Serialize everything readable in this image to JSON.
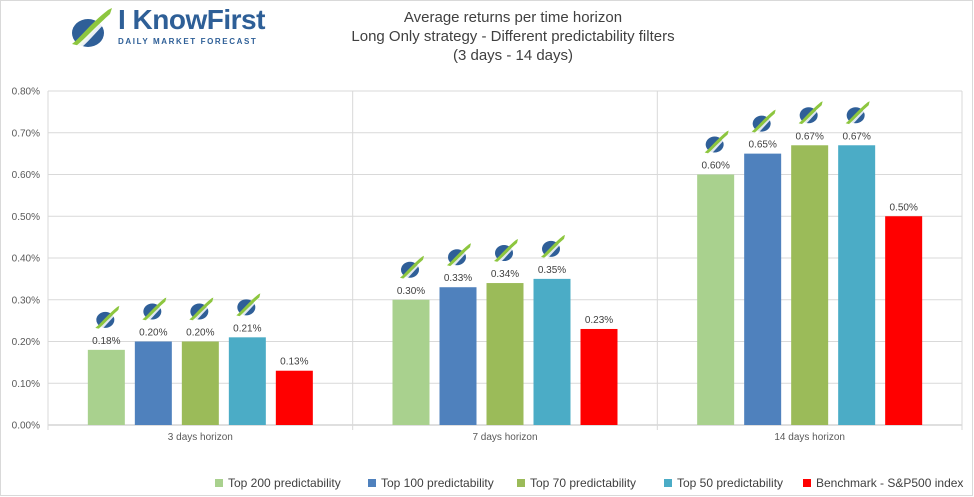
{
  "brand": {
    "name": "I KnowFirst",
    "tagline": "DAILY MARKET FORECAST"
  },
  "chart_data": {
    "type": "bar",
    "title": [
      "Average returns per time horizon",
      "Long Only strategy - Different predictability filters",
      "(3 days - 14 days)"
    ],
    "categories": [
      "3 days horizon",
      "7 days horizon",
      "14 days horizon"
    ],
    "series": [
      {
        "name": "Top 200 predictability",
        "color": "#a9d18e",
        "values": [
          0.18,
          0.3,
          0.6
        ],
        "labels": [
          "0.18%",
          "0.30%",
          "0.60%"
        ]
      },
      {
        "name": "Top 100 predictability",
        "color": "#4f81bd",
        "values": [
          0.2,
          0.33,
          0.65
        ],
        "labels": [
          "0.20%",
          "0.33%",
          "0.65%"
        ]
      },
      {
        "name": "Top 70 predictability",
        "color": "#9bbb59",
        "values": [
          0.2,
          0.34,
          0.67
        ],
        "labels": [
          "0.20%",
          "0.34%",
          "0.67%"
        ]
      },
      {
        "name": "Top 50 predictability",
        "color": "#4bacc6",
        "values": [
          0.21,
          0.35,
          0.67
        ],
        "labels": [
          "0.21%",
          "0.35%",
          "0.67%"
        ]
      },
      {
        "name": "Benchmark - S&P500 index",
        "color": "#ff0000",
        "values": [
          0.13,
          0.23,
          0.5
        ],
        "labels": [
          "0.13%",
          "0.23%",
          "0.50%"
        ]
      }
    ],
    "yticks": [
      "0.00%",
      "0.10%",
      "0.20%",
      "0.30%",
      "0.40%",
      "0.50%",
      "0.60%",
      "0.70%",
      "0.80%"
    ],
    "ylim": [
      0,
      0.8
    ],
    "legend_position": "bottom",
    "grid": "horizontal",
    "marker_icon_above_predictability_bars": "i-know-first-logo-icon"
  }
}
